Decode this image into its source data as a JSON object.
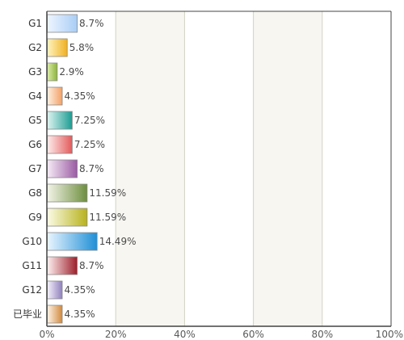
{
  "chart_data": {
    "type": "bar",
    "orientation": "horizontal",
    "categories": [
      "G1",
      "G2",
      "G3",
      "G4",
      "G5",
      "G6",
      "G7",
      "G8",
      "G9",
      "G10",
      "G11",
      "G12",
      "已毕业"
    ],
    "values": [
      8.7,
      5.8,
      2.9,
      4.35,
      7.25,
      7.25,
      8.7,
      11.59,
      11.59,
      14.49,
      8.7,
      4.35,
      4.35
    ],
    "value_labels": [
      "8.7%",
      "5.8%",
      "2.9%",
      "4.35%",
      "7.25%",
      "7.25%",
      "8.7%",
      "11.59%",
      "11.59%",
      "14.49%",
      "8.7%",
      "4.35%",
      "4.35%"
    ],
    "x_ticks": [
      0,
      20,
      40,
      60,
      80,
      100
    ],
    "x_tick_labels": [
      "0%",
      "20%",
      "40%",
      "60%",
      "80%",
      "100%"
    ],
    "xlim": [
      0,
      100
    ],
    "grid": true,
    "alternating_bands": true,
    "title": "",
    "xlabel": "",
    "ylabel": ""
  },
  "colors": {
    "bars": [
      [
        "#eef5ff",
        "#a9cdf5"
      ],
      [
        "#fff4c2",
        "#f0b020"
      ],
      [
        "#dcedaa",
        "#8cb33a"
      ],
      [
        "#fff0e2",
        "#f3a066"
      ],
      [
        "#e0f4f1",
        "#1a9c92"
      ],
      [
        "#ffecec",
        "#e25a5a"
      ],
      [
        "#f6ecf6",
        "#9a5aa3"
      ],
      [
        "#f3f5e8",
        "#6e8e3e"
      ],
      [
        "#fbfbe6",
        "#b8b21c"
      ],
      [
        "#eaf5ff",
        "#1e8fd6"
      ],
      [
        "#fff0f0",
        "#9c1e2a"
      ],
      [
        "#f6f2fb",
        "#8f80bd"
      ],
      [
        "#fff3e6",
        "#d08a3e"
      ]
    ],
    "band": "#f7f6f1",
    "grid": "#d2d2c4",
    "axis": "#444444"
  }
}
